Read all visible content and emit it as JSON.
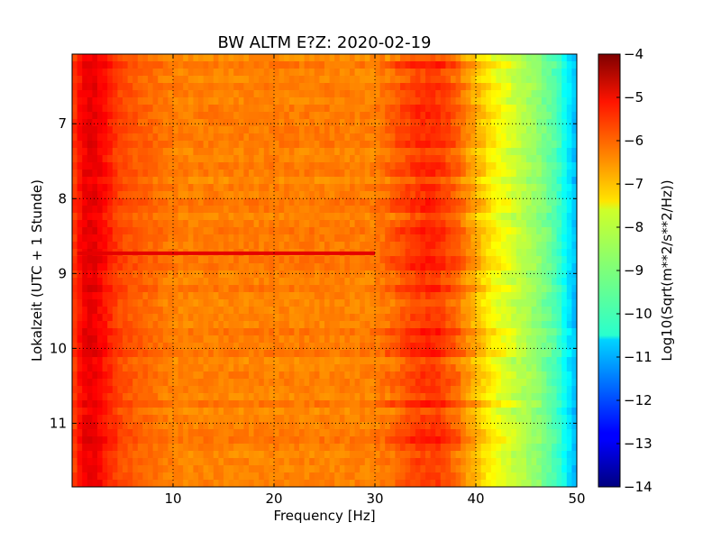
{
  "chart_data": {
    "type": "heatmap",
    "title": "BW ALTM E?Z: 2020-02-19",
    "xlabel": "Frequency [Hz]",
    "ylabel": "Lokalzeit (UTC + 1 Stunde)",
    "colorbar_label": "Log10(Sqrt(m**2/s**2/Hz))",
    "xlim": [
      0,
      50
    ],
    "ylim": [
      11.85,
      6.07
    ],
    "y_inverted": true,
    "x_ticks": [
      10,
      20,
      30,
      40,
      50
    ],
    "x_tick_labels": [
      "10",
      "20",
      "30",
      "40",
      "50"
    ],
    "y_ticks": [
      7,
      8,
      9,
      10,
      11
    ],
    "y_tick_labels": [
      "7",
      "8",
      "9",
      "10",
      "11"
    ],
    "grid": true,
    "colormap": "jet",
    "color_range": [
      -14,
      -4
    ],
    "colorbar_ticks": [
      -4,
      -5,
      -6,
      -7,
      -8,
      -9,
      -10,
      -11,
      -12,
      -13,
      -14
    ],
    "colorbar_tick_labels": [
      "−4",
      "−5",
      "−6",
      "−7",
      "−8",
      "−9",
      "−10",
      "−11",
      "−12",
      "−13",
      "−14"
    ],
    "frequency_profile": [
      {
        "hz": 0,
        "log10": -6.0
      },
      {
        "hz": 1,
        "log10": -5.2
      },
      {
        "hz": 2,
        "log10": -5.0
      },
      {
        "hz": 3,
        "log10": -5.3
      },
      {
        "hz": 4,
        "log10": -5.7
      },
      {
        "hz": 5,
        "log10": -6.0
      },
      {
        "hz": 7,
        "log10": -6.2
      },
      {
        "hz": 10,
        "log10": -6.5
      },
      {
        "hz": 20,
        "log10": -6.5
      },
      {
        "hz": 30,
        "log10": -6.5
      },
      {
        "hz": 32,
        "log10": -6.2
      },
      {
        "hz": 34,
        "log10": -5.8
      },
      {
        "hz": 36,
        "log10": -5.7
      },
      {
        "hz": 38,
        "log10": -6.2
      },
      {
        "hz": 40,
        "log10": -7.0
      },
      {
        "hz": 42,
        "log10": -7.8
      },
      {
        "hz": 44,
        "log10": -8.3
      },
      {
        "hz": 46,
        "log10": -8.8
      },
      {
        "hz": 48,
        "log10": -9.5
      },
      {
        "hz": 49,
        "log10": -10.3
      },
      {
        "hz": 50,
        "log10": -11.0
      }
    ],
    "features": [
      {
        "name": "broadband-line",
        "time": 8.73,
        "hz_range": [
          0.5,
          30
        ],
        "log10": -5.0
      }
    ]
  }
}
